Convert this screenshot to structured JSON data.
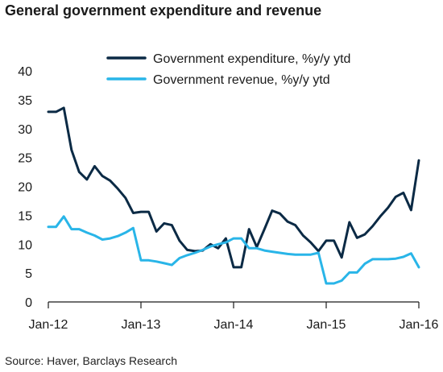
{
  "header": {
    "title": "General government expenditure and revenue"
  },
  "footer": {
    "source": "Source: Haver, Barclays Research"
  },
  "chart_data": {
    "type": "line",
    "title": "General government expenditure and revenue",
    "xlabel": "",
    "ylabel": "",
    "ylim": [
      0,
      40
    ],
    "yticks": [
      0,
      5,
      10,
      15,
      20,
      25,
      30,
      35,
      40
    ],
    "xtick_labels": [
      "Jan-12",
      "Jan-13",
      "Jan-14",
      "Jan-15",
      "Jan-16"
    ],
    "xlim": [
      "2012-01",
      "2016-01"
    ],
    "grid": false,
    "legend_position": "top",
    "series": [
      {
        "name": "Government expenditure, %y/y ytd",
        "color": "#0b2a45",
        "x": [
          "2012-01",
          "2012-02",
          "2012-03",
          "2012-04",
          "2012-05",
          "2012-06",
          "2012-07",
          "2012-08",
          "2012-09",
          "2012-10",
          "2012-11",
          "2012-12",
          "2013-01",
          "2013-02",
          "2013-03",
          "2013-04",
          "2013-05",
          "2013-06",
          "2013-07",
          "2013-08",
          "2013-09",
          "2013-10",
          "2013-11",
          "2013-12",
          "2014-01",
          "2014-02",
          "2014-03",
          "2014-04",
          "2014-05",
          "2014-06",
          "2014-07",
          "2014-08",
          "2014-09",
          "2014-10",
          "2014-11",
          "2014-12",
          "2015-01",
          "2015-02",
          "2015-03",
          "2015-04",
          "2015-05",
          "2015-06",
          "2015-07",
          "2015-08",
          "2015-09",
          "2015-10",
          "2015-11",
          "2015-12",
          "2016-01"
        ],
        "values": [
          32.9,
          32.9,
          33.6,
          26.3,
          22.5,
          21.2,
          23.5,
          21.8,
          21.0,
          19.6,
          18.0,
          15.4,
          15.6,
          15.6,
          12.2,
          13.6,
          13.3,
          10.6,
          9.0,
          8.8,
          8.9,
          10.0,
          9.3,
          11.0,
          6.0,
          6.0,
          12.6,
          9.5,
          12.6,
          15.8,
          15.3,
          13.9,
          13.3,
          11.5,
          10.3,
          8.8,
          10.6,
          10.6,
          7.7,
          13.8,
          11.1,
          11.7,
          13.1,
          14.8,
          16.3,
          18.2,
          18.9,
          15.9,
          24.5
        ]
      },
      {
        "name": "Government revenue, %y/y ytd",
        "color": "#29b5e8",
        "x": [
          "2012-01",
          "2012-02",
          "2012-03",
          "2012-04",
          "2012-05",
          "2012-06",
          "2012-07",
          "2012-08",
          "2012-09",
          "2012-10",
          "2012-11",
          "2012-12",
          "2013-01",
          "2013-02",
          "2013-03",
          "2013-04",
          "2013-05",
          "2013-06",
          "2013-07",
          "2013-08",
          "2013-09",
          "2013-10",
          "2013-11",
          "2013-12",
          "2014-01",
          "2014-02",
          "2014-03",
          "2014-04",
          "2014-05",
          "2014-06",
          "2014-07",
          "2014-08",
          "2014-09",
          "2014-10",
          "2014-11",
          "2014-12",
          "2015-01",
          "2015-02",
          "2015-03",
          "2015-04",
          "2015-05",
          "2015-06",
          "2015-07",
          "2015-08",
          "2015-09",
          "2015-10",
          "2015-11",
          "2015-12",
          "2016-01"
        ],
        "values": [
          13.0,
          13.0,
          14.8,
          12.6,
          12.6,
          12.0,
          11.5,
          10.8,
          11.0,
          11.4,
          12.0,
          12.8,
          7.2,
          7.2,
          7.0,
          6.7,
          6.4,
          7.6,
          8.1,
          8.5,
          9.0,
          9.6,
          10.0,
          10.3,
          11.0,
          11.0,
          9.3,
          9.3,
          8.9,
          8.7,
          8.5,
          8.3,
          8.2,
          8.2,
          8.2,
          8.5,
          3.2,
          3.2,
          3.7,
          5.1,
          5.1,
          6.6,
          7.4,
          7.4,
          7.4,
          7.5,
          7.8,
          8.4,
          6.0
        ]
      }
    ]
  }
}
